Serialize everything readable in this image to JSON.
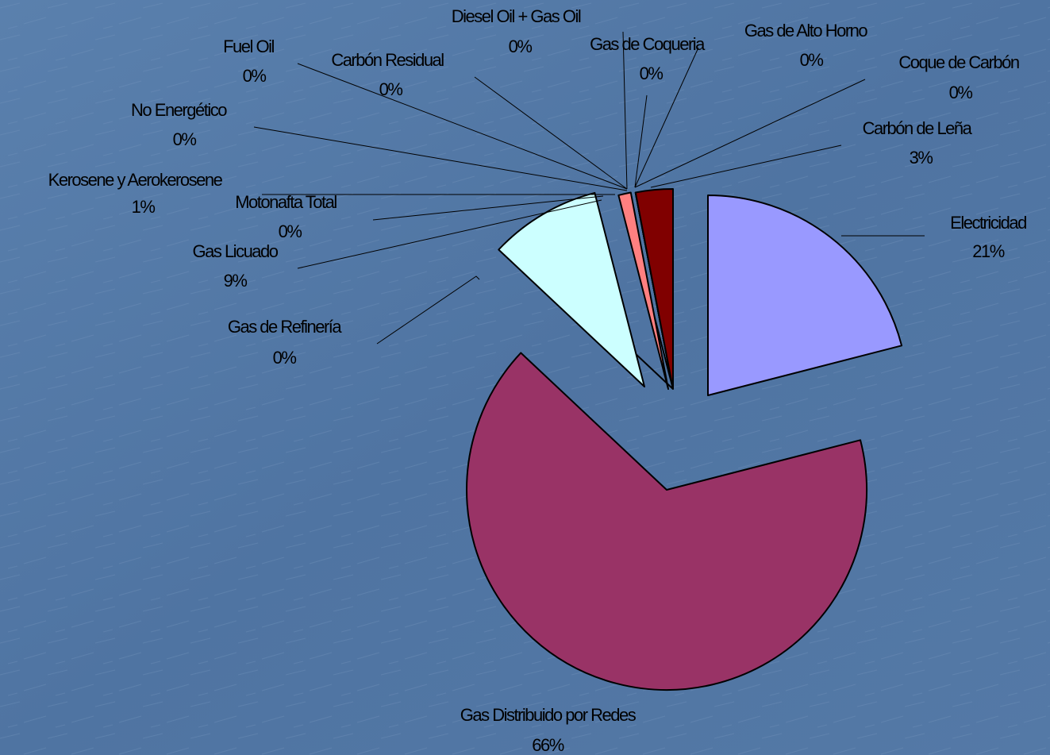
{
  "chart_data": {
    "type": "pie",
    "categories": [
      "Electricidad",
      "Gas Distribuido por Redes",
      "Gas de Refinería",
      "Gas Licuado",
      "Motonafta Total",
      "Kerosene y Aerokerosene",
      "No Energético",
      "Fuel Oil",
      "Carbón Residual",
      "Diesel Oil + Gas Oil",
      "Gas de Coqueria",
      "Gas de Alto Horno",
      "Coque de Carbón",
      "Carbón de Leña"
    ],
    "values": [
      21,
      66,
      0,
      9,
      0,
      1,
      0,
      0,
      0,
      0,
      0,
      0,
      0,
      3
    ],
    "value_labels": [
      "21%",
      "66%",
      "0%",
      "9%",
      "0%",
      "1%",
      "0%",
      "0%",
      "0%",
      "0%",
      "0%",
      "0%",
      "0%",
      "3%"
    ],
    "colors": [
      "#9999ff",
      "#993366",
      "#ffffcc",
      "#ccffff",
      "#660066",
      "#ff8080",
      "#0066cc",
      "#ccccff",
      "#000080",
      "#ff00ff",
      "#ffff00",
      "#00ffff",
      "#800080",
      "#800000"
    ]
  }
}
